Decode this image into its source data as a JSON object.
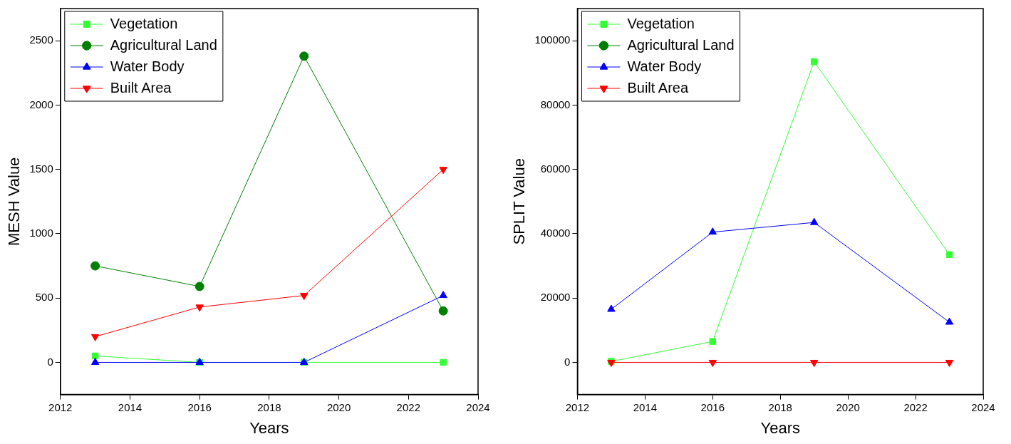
{
  "chart_data": [
    {
      "type": "line",
      "xlabel": "Years",
      "ylabel": "MESH Value",
      "x": [
        2013,
        2016,
        2019,
        2023
      ],
      "xlim": [
        2012,
        2024
      ],
      "xticks": [
        2012,
        2014,
        2016,
        2018,
        2020,
        2022,
        2024
      ],
      "ylim": [
        -250,
        2750
      ],
      "yticks": [
        0,
        500,
        1000,
        1500,
        2000,
        2500
      ],
      "grid": false,
      "legend": "top left",
      "series": [
        {
          "name": "Vegetation",
          "color": "#33ff33",
          "marker": "square",
          "values": [
            50,
            0,
            0,
            0
          ]
        },
        {
          "name": "Agricultural Land",
          "color": "#008000",
          "marker": "circle",
          "values": [
            750,
            590,
            2380,
            400
          ]
        },
        {
          "name": "Water Body",
          "color": "#0000ff",
          "marker": "triangle",
          "values": [
            0,
            0,
            0,
            520
          ]
        },
        {
          "name": "Built Area",
          "color": "#ff0000",
          "marker": "triangle-down",
          "values": [
            200,
            430,
            520,
            1500
          ]
        }
      ]
    },
    {
      "type": "line",
      "xlabel": "Years",
      "ylabel": "SPLIT Value",
      "x": [
        2013,
        2016,
        2019,
        2023
      ],
      "xlim": [
        2012,
        2024
      ],
      "xticks": [
        2012,
        2014,
        2016,
        2018,
        2020,
        2022,
        2024
      ],
      "ylim": [
        -10000,
        110000
      ],
      "yticks": [
        0,
        20000,
        40000,
        60000,
        80000,
        100000
      ],
      "grid": false,
      "legend": "top left",
      "series": [
        {
          "name": "Vegetation",
          "color": "#33ff33",
          "marker": "square",
          "values": [
            300,
            6500,
            93500,
            33500
          ]
        },
        {
          "name": "Agricultural Land",
          "color": "#008000",
          "marker": "circle",
          "values": [
            null,
            null,
            null,
            null
          ]
        },
        {
          "name": "Water Body",
          "color": "#0000ff",
          "marker": "triangle",
          "values": [
            16500,
            40500,
            43500,
            12500
          ]
        },
        {
          "name": "Built Area",
          "color": "#ff0000",
          "marker": "triangle-down",
          "values": [
            0,
            0,
            0,
            0
          ]
        }
      ]
    }
  ]
}
